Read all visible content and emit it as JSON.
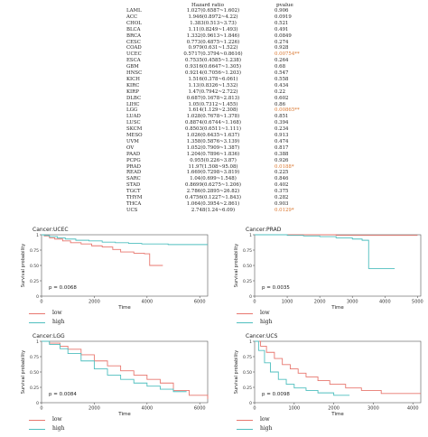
{
  "table": {
    "header_hr": "Hazard ratio",
    "header_p": "pvalue",
    "rows": [
      {
        "cancer": "LAML",
        "hr": "1.027(0.6587~1.602)",
        "p": "0.906",
        "sig": false
      },
      {
        "cancer": "ACC",
        "hr": "1.946(0.8972~4.22)",
        "p": "0.0919",
        "sig": false
      },
      {
        "cancer": "CHOL",
        "hr": "1.383(0.513~3.73)",
        "p": "0.521",
        "sig": false
      },
      {
        "cancer": "BLCA",
        "hr": "1.11(0.8249~1.493)",
        "p": "0.491",
        "sig": false
      },
      {
        "cancer": "BRCA",
        "hr": "1.332(0.9613~1.846)",
        "p": "0.0849",
        "sig": false
      },
      {
        "cancer": "CESC",
        "hr": "0.773(0.4875~1.226)",
        "p": "0.274",
        "sig": false
      },
      {
        "cancer": "COAD",
        "hr": "0.979(0.631~1.522)",
        "p": "0.928",
        "sig": false
      },
      {
        "cancer": "UCEC",
        "hr": "0.5717(0.3794~0.8616)",
        "p": "0.00754**",
        "sig": true
      },
      {
        "cancer": "ESCA",
        "hr": "0.7535(0.4585~1.238)",
        "p": "0.264",
        "sig": false
      },
      {
        "cancer": "GBM",
        "hr": "0.9316(0.6647~1.305)",
        "p": "0.68",
        "sig": false
      },
      {
        "cancer": "HNSC",
        "hr": "0.9214(0.7056~1.203)",
        "p": "0.547",
        "sig": false
      },
      {
        "cancer": "KICH",
        "hr": "1.516(0.378~6.061)",
        "p": "0.558",
        "sig": false
      },
      {
        "cancer": "KIRC",
        "hr": "1.13(0.8326~1.532)",
        "p": "0.434",
        "sig": false
      },
      {
        "cancer": "KIRP",
        "hr": "1.47(0.7942~2.722)",
        "p": "0.22",
        "sig": false
      },
      {
        "cancer": "DLBC",
        "hr": "0.687(0.1678~2.813)",
        "p": "0.602",
        "sig": false
      },
      {
        "cancer": "LIHC",
        "hr": "1.05(0.7312~1.455)",
        "p": "0.86",
        "sig": false
      },
      {
        "cancer": "LGG",
        "hr": "1.614(1.129~2.308)",
        "p": "0.00865**",
        "sig": true
      },
      {
        "cancer": "LUAD",
        "hr": "1.028(0.7678~1.378)",
        "p": "0.851",
        "sig": false
      },
      {
        "cancer": "LUSC",
        "hr": "0.8874(0.6744~1.168)",
        "p": "0.394",
        "sig": false
      },
      {
        "cancer": "SKCM",
        "hr": "0.8503(0.6511~1.111)",
        "p": "0.234",
        "sig": false
      },
      {
        "cancer": "MESO",
        "hr": "1.026(0.6435~1.637)",
        "p": "0.913",
        "sig": false
      },
      {
        "cancer": "UVM",
        "hr": "1.358(0.5876~3.139)",
        "p": "0.474",
        "sig": false
      },
      {
        "cancer": "OV",
        "hr": "1.052(0.7909~1.387)",
        "p": "0.817",
        "sig": false
      },
      {
        "cancer": "PAAD",
        "hr": "1.204(0.7896~1.836)",
        "p": "0.388",
        "sig": false
      },
      {
        "cancer": "PCPG",
        "hr": "0.955(0.226~3.87)",
        "p": "0.926",
        "sig": false
      },
      {
        "cancer": "PRAD",
        "hr": "11.97(1.508~95.08)",
        "p": "0.0188*",
        "sig": true
      },
      {
        "cancer": "READ",
        "hr": "1.669(0.7298~3.819)",
        "p": "0.225",
        "sig": false
      },
      {
        "cancer": "SARC",
        "hr": "1.04(0.699~1.548)",
        "p": "0.846",
        "sig": false
      },
      {
        "cancer": "STAD",
        "hr": "0.8699(0.6275~1.206)",
        "p": "0.402",
        "sig": false
      },
      {
        "cancer": "TGCT",
        "hr": "2.786(0.2895~26.82)",
        "p": "0.375",
        "sig": false
      },
      {
        "cancer": "THYM",
        "hr": "0.4756(0.1227~1.843)",
        "p": "0.282",
        "sig": false
      },
      {
        "cancer": "THCA",
        "hr": "1.064(0.3954~2.861)",
        "p": "0.903",
        "sig": false
      },
      {
        "cancer": "UCS",
        "hr": "2.748(1.24~6.09)",
        "p": "0.0129*",
        "sig": true
      }
    ]
  },
  "colors": {
    "low": "#e8776f",
    "high": "#4fbfbf",
    "sig": "#d9742b"
  },
  "chart_data": [
    {
      "type": "line",
      "title": "Cancer:UCEC",
      "xlabel": "Time",
      "ylabel": "Survival probability",
      "xlim": [
        0,
        6300
      ],
      "ylim": [
        0,
        1
      ],
      "xticks": [
        0,
        2000,
        4000,
        6000
      ],
      "yticks": [
        0,
        0.25,
        0.5,
        0.75,
        1
      ],
      "xtick_labels": [
        "0",
        "2000",
        "4000",
        "6000"
      ],
      "ytick_labels": [
        "0",
        "0.25",
        "0.50",
        "0.75",
        "1"
      ],
      "pvalue": "p = 0.0068",
      "legend": [
        "low",
        "high"
      ],
      "series": [
        {
          "name": "low",
          "x": [
            0,
            100,
            300,
            500,
            800,
            1100,
            1500,
            1900,
            2300,
            2700,
            3000,
            3500,
            3900,
            4100,
            4600
          ],
          "y": [
            1,
            0.98,
            0.95,
            0.93,
            0.9,
            0.87,
            0.85,
            0.82,
            0.8,
            0.76,
            0.72,
            0.7,
            0.69,
            0.5,
            0.5
          ]
        },
        {
          "name": "high",
          "x": [
            0,
            100,
            300,
            600,
            900,
            1300,
            1800,
            2300,
            2800,
            3300,
            3800,
            4300,
            4800,
            5300,
            5800,
            6300
          ],
          "y": [
            1,
            0.99,
            0.97,
            0.95,
            0.93,
            0.91,
            0.9,
            0.88,
            0.87,
            0.86,
            0.85,
            0.85,
            0.84,
            0.84,
            0.84,
            0.84
          ]
        }
      ]
    },
    {
      "type": "line",
      "title": "Cancer:PRAD",
      "xlabel": "Time",
      "ylabel": "Survival probability",
      "xlim": [
        0,
        5100
      ],
      "ylim": [
        0,
        1
      ],
      "xticks": [
        0,
        1000,
        2000,
        3000,
        4000,
        5000
      ],
      "yticks": [
        0,
        0.25,
        0.5,
        0.75,
        1
      ],
      "xtick_labels": [
        "0",
        "1000",
        "2000",
        "3000",
        "4000",
        "5000"
      ],
      "ytick_labels": [
        "0",
        "0.25",
        "0.50",
        "0.75",
        "1"
      ],
      "pvalue": "p = 0.0035",
      "legend": [
        "low",
        "high"
      ],
      "series": [
        {
          "name": "low",
          "x": [
            0,
            500,
            1000,
            1500,
            2000,
            2500,
            3000,
            3500,
            4000,
            4500,
            5000
          ],
          "y": [
            1,
            1,
            1,
            1,
            1,
            0.99,
            0.99,
            0.99,
            0.99,
            0.99,
            0.99
          ]
        },
        {
          "name": "high",
          "x": [
            0,
            500,
            1000,
            1500,
            2000,
            2500,
            3000,
            3300,
            3500,
            3600,
            4300
          ],
          "y": [
            1,
            1,
            0.99,
            0.98,
            0.97,
            0.95,
            0.93,
            0.91,
            0.45,
            0.45,
            0.45
          ]
        }
      ]
    },
    {
      "type": "line",
      "title": "Cancer:LGG",
      "xlabel": "Time",
      "ylabel": "Survival probability",
      "xlim": [
        0,
        6300
      ],
      "ylim": [
        0,
        1
      ],
      "xticks": [
        0,
        2000,
        4000,
        6000
      ],
      "yticks": [
        0,
        0.25,
        0.5,
        0.75,
        1
      ],
      "xtick_labels": [
        "0",
        "2000",
        "4000",
        "6000"
      ],
      "ytick_labels": [
        "0",
        "0.25",
        "0.50",
        "0.75",
        "1"
      ],
      "pvalue": "p = 0.0084",
      "legend": [
        "low",
        "high"
      ],
      "series": [
        {
          "name": "low",
          "x": [
            0,
            300,
            700,
            1000,
            1500,
            2000,
            2500,
            3000,
            3500,
            4000,
            4500,
            5000,
            5600,
            6300
          ],
          "y": [
            1,
            0.97,
            0.92,
            0.87,
            0.78,
            0.68,
            0.6,
            0.52,
            0.45,
            0.38,
            0.32,
            0.2,
            0.12,
            0.06
          ]
        },
        {
          "name": "high",
          "x": [
            0,
            300,
            700,
            1000,
            1500,
            2000,
            2500,
            3000,
            3500,
            4000,
            4500,
            5000,
            5500
          ],
          "y": [
            1,
            0.95,
            0.88,
            0.8,
            0.68,
            0.55,
            0.45,
            0.38,
            0.32,
            0.27,
            0.22,
            0.18,
            0.18
          ]
        }
      ]
    },
    {
      "type": "line",
      "title": "Cancer:UCS",
      "xlabel": "Time",
      "ylabel": "Survival probability",
      "xlim": [
        0,
        4200
      ],
      "ylim": [
        0,
        1
      ],
      "xticks": [
        0,
        1000,
        2000,
        3000,
        4000
      ],
      "yticks": [
        0,
        0.25,
        0.5,
        0.75,
        1
      ],
      "xtick_labels": [
        "0",
        "1000",
        "2000",
        "3000",
        "4000"
      ],
      "ytick_labels": [
        "0",
        "0.25",
        "0.50",
        "0.75",
        "1"
      ],
      "pvalue": "p = 0.0098",
      "legend": [
        "low",
        "high"
      ],
      "series": [
        {
          "name": "low",
          "x": [
            0,
            150,
            300,
            500,
            700,
            900,
            1100,
            1300,
            1600,
            1900,
            2300,
            2700,
            3200,
            4200
          ],
          "y": [
            1,
            0.92,
            0.82,
            0.72,
            0.62,
            0.55,
            0.48,
            0.42,
            0.36,
            0.3,
            0.24,
            0.2,
            0.15,
            0.15
          ]
        },
        {
          "name": "high",
          "x": [
            0,
            100,
            250,
            400,
            600,
            800,
            1000,
            1300,
            1600,
            2000,
            2400
          ],
          "y": [
            1,
            0.85,
            0.65,
            0.5,
            0.38,
            0.3,
            0.24,
            0.2,
            0.16,
            0.12,
            0.12
          ]
        }
      ]
    }
  ]
}
